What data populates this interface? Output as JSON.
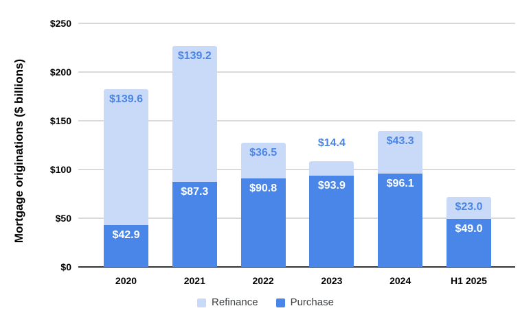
{
  "chart_data": {
    "type": "bar",
    "stacked": true,
    "title": "",
    "xlabel": "",
    "ylabel": "Mortgage originations ($ billions)",
    "categories": [
      "2020",
      "2021",
      "2022",
      "2023",
      "2024",
      "H1 2025"
    ],
    "series": [
      {
        "name": "Purchase",
        "color": "#4a86e8",
        "label_color": "#ffffff",
        "values": [
          42.9,
          87.3,
          90.8,
          93.9,
          96.1,
          49.0
        ],
        "labels": [
          "$42.9",
          "$87.3",
          "$90.8",
          "$93.9",
          "$96.1",
          "$49.0"
        ]
      },
      {
        "name": "Refinance",
        "color": "#c9daf8",
        "label_color": "#4a86e8",
        "values": [
          139.6,
          139.2,
          36.5,
          14.4,
          43.3,
          23.0
        ],
        "labels": [
          "$139.6",
          "$139.2",
          "$36.5",
          "$14.4",
          "$43.3",
          "$23.0"
        ]
      }
    ],
    "ylim": [
      0,
      250
    ],
    "yticks": [
      0,
      50,
      100,
      150,
      200,
      250
    ],
    "ytick_labels": [
      "$0",
      "$50",
      "$100",
      "$150",
      "$200",
      "$250"
    ],
    "grid": true,
    "legend": {
      "position": "bottom",
      "items": [
        {
          "label": "Refinance",
          "color": "#c9daf8"
        },
        {
          "label": "Purchase",
          "color": "#4a86e8"
        }
      ]
    }
  }
}
